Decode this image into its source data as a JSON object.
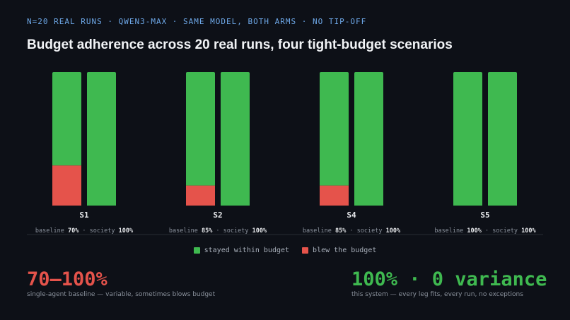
{
  "header": {
    "kicker": "N=20 REAL RUNS · QWEN3-MAX · SAME MODEL, BOTH ARMS · NO TIP-OFF",
    "title": "Budget adherence across 20 real runs, four tight-budget scenarios"
  },
  "colors": {
    "within": "#3fb950",
    "blew": "#e5534b",
    "background": "#0d1017",
    "kicker": "#6ea8e8"
  },
  "chart_data": {
    "type": "bar",
    "stacked": true,
    "categories": [
      "S1",
      "S2",
      "S4",
      "S5"
    ],
    "arms": [
      "baseline",
      "society"
    ],
    "scenarios": [
      {
        "label": "S1",
        "baseline_pct": "70%",
        "society_pct": "100%",
        "baseline": {
          "within": 14,
          "blew": 6
        },
        "society": {
          "within": 20,
          "blew": 0
        }
      },
      {
        "label": "S2",
        "baseline_pct": "85%",
        "society_pct": "100%",
        "baseline": {
          "within": 17,
          "blew": 3
        },
        "society": {
          "within": 20,
          "blew": 0
        }
      },
      {
        "label": "S4",
        "baseline_pct": "85%",
        "society_pct": "100%",
        "baseline": {
          "within": 17,
          "blew": 3
        },
        "society": {
          "within": 20,
          "blew": 0
        }
      },
      {
        "label": "S5",
        "baseline_pct": "100%",
        "society_pct": "100%",
        "baseline": {
          "within": 20,
          "blew": 0
        },
        "society": {
          "within": 20,
          "blew": 0
        }
      }
    ],
    "ylim": [
      0,
      20
    ],
    "grid": false,
    "legend_placement": "bottom-center",
    "legend": [
      {
        "key": "within",
        "label": "stayed within budget"
      },
      {
        "key": "blew",
        "label": "blew the budget"
      }
    ],
    "note_prefix": {
      "baseline": "baseline",
      "society": "society",
      "sep": "·"
    }
  },
  "stats": {
    "left": {
      "value": "70–100%",
      "caption": "single-agent baseline — variable, sometimes blows budget",
      "color": "#e5534b"
    },
    "right": {
      "value": "100% · 0 variance",
      "caption": "this system — every leg fits, every run, no exceptions",
      "color": "#3fb950"
    }
  }
}
